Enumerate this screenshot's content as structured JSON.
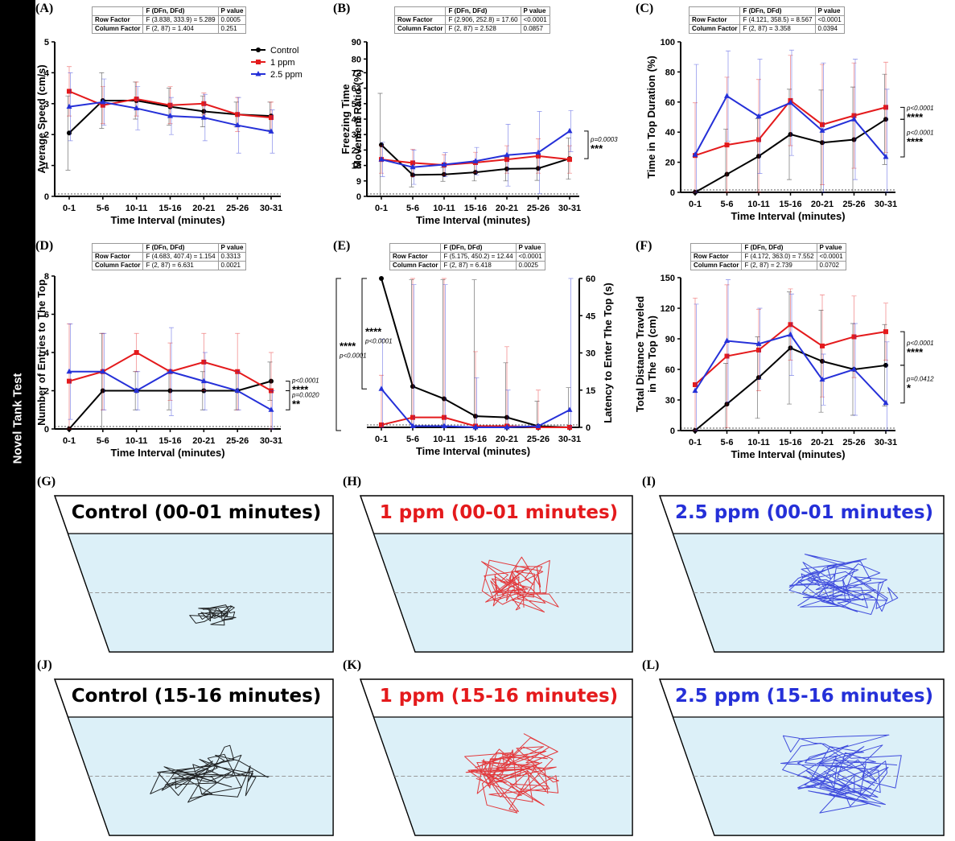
{
  "sidebar_label": "Novel Tank Test",
  "colors": {
    "control": "#000000",
    "ppm1": "#e41a1c",
    "ppm25": "#2530d8",
    "tank": "#dcf0f8"
  },
  "legend": [
    "Control",
    "1 ppm",
    "2.5 ppm"
  ],
  "chart_data": [
    {
      "type": "line",
      "label": "(A)",
      "categories": [
        "0-1",
        "5-6",
        "10-11",
        "15-16",
        "20-21",
        "25-26",
        "30-31"
      ],
      "xlabel": "Time Interval (minutes)",
      "ylabel": "Average Speed (cm/s)",
      "ylim": [
        0,
        5
      ],
      "yticks": [
        "0",
        "1",
        "2",
        "3",
        "4",
        "5"
      ],
      "series": [
        {
          "name": "Control",
          "values": [
            2.05,
            3.1,
            3.1,
            2.9,
            2.75,
            2.65,
            2.6
          ],
          "err": [
            1.2,
            0.9,
            0.6,
            0.6,
            0.5,
            0.4,
            0.45
          ]
        },
        {
          "name": "1 ppm",
          "values": [
            3.4,
            2.95,
            3.15,
            2.95,
            3.0,
            2.65,
            2.55
          ],
          "err": [
            0.8,
            0.6,
            0.55,
            0.6,
            0.35,
            0.55,
            0.5
          ]
        },
        {
          "name": "2.5 ppm",
          "values": [
            2.9,
            3.05,
            2.85,
            2.6,
            2.55,
            2.3,
            2.1
          ],
          "err": [
            1.1,
            0.75,
            0.7,
            0.6,
            0.75,
            0.9,
            0.7
          ]
        }
      ],
      "stat": {
        "head": [
          "",
          "F (DFn, DFd)",
          "P value"
        ],
        "row": [
          "Row Factor",
          "F (3.838, 333.9) = 5.289",
          "0.0005"
        ],
        "col": [
          "Column Factor",
          "F (2, 87) = 1.404",
          "0.251"
        ]
      }
    },
    {
      "type": "line",
      "label": "(B)",
      "categories": [
        "0-1",
        "5-6",
        "10-11",
        "15-16",
        "20-21",
        "25-26",
        "30-31"
      ],
      "xlabel": "Time Interval (minutes)",
      "ylabel": [
        "Freezing Time",
        "Movement Ratio (%)"
      ],
      "ylim": [
        0,
        90
      ],
      "ytick_vals": [
        0,
        9,
        18,
        27,
        36,
        45,
        54,
        63,
        72,
        80,
        90
      ],
      "yticks": [
        "0",
        "9",
        "18",
        "27",
        "36",
        "45",
        "54",
        "63",
        "72",
        "80",
        "90"
      ],
      "series": [
        {
          "name": "Control",
          "values": [
            30,
            12.5,
            12.8,
            14,
            16,
            16.3,
            22
          ],
          "err": [
            30,
            7,
            4,
            5,
            7,
            7,
            12
          ]
        },
        {
          "name": "1 ppm",
          "values": [
            21.5,
            19.5,
            18.3,
            19.7,
            21.5,
            23.5,
            21.5
          ],
          "err": [
            8,
            8,
            6,
            6,
            8,
            10,
            8
          ]
        },
        {
          "name": "2.5 ppm",
          "values": [
            21.5,
            17,
            18.5,
            20.5,
            24,
            25.5,
            38
          ],
          "err": [
            10,
            10,
            7,
            8,
            18,
            24,
            12
          ]
        }
      ],
      "stat": {
        "head": [
          "",
          "F (DFn, DFd)",
          "P value"
        ],
        "row": [
          "Row Factor",
          "F (2.906, 252.8) = 17.60",
          "<0.0001"
        ],
        "col": [
          "Column Factor",
          "F (2, 87) = 2.528",
          "0.0857"
        ]
      },
      "sig": [
        {
          "p": "p=0.0003",
          "stars": "***"
        }
      ]
    },
    {
      "type": "line",
      "label": "(C)",
      "categories": [
        "0-1",
        "5-6",
        "10-11",
        "15-16",
        "20-21",
        "25-26",
        "30-31"
      ],
      "xlabel": "Time Interval (minutes)",
      "ylabel": "Time in Top Duration (%)",
      "ylim": [
        0,
        100
      ],
      "yticks": [
        "0",
        "20",
        "40",
        "60",
        "80",
        "100"
      ],
      "series": [
        {
          "name": "Control",
          "values": [
            0,
            12,
            24,
            38.5,
            33,
            35,
            48.5
          ],
          "err": [
            0,
            30,
            25,
            30,
            35,
            35,
            30
          ]
        },
        {
          "name": "1 ppm",
          "values": [
            24.5,
            31.5,
            35,
            61,
            45,
            51,
            56.5
          ],
          "err": [
            35,
            45,
            40,
            30,
            40,
            35,
            30
          ]
        },
        {
          "name": "2.5 ppm",
          "values": [
            25,
            64,
            50.5,
            59.5,
            41,
            48.5,
            23.5
          ],
          "err": [
            60,
            30,
            38,
            35,
            45,
            40,
            45
          ]
        }
      ],
      "stat": {
        "head": [
          "",
          "F (DFn, DFd)",
          "P value"
        ],
        "row": [
          "Row Factor",
          "F (4.121, 358.5) = 8.567",
          "<0.0001"
        ],
        "col": [
          "Column Factor",
          "F (2, 87) = 3.358",
          "0.0394"
        ]
      },
      "sig": [
        {
          "p": "p<0.0001",
          "stars": "****"
        },
        {
          "p": "p<0.0001",
          "stars": "****"
        }
      ]
    },
    {
      "type": "line",
      "label": "(D)",
      "categories": [
        "0-1",
        "5-6",
        "10-11",
        "15-16",
        "20-21",
        "25-26",
        "30-31"
      ],
      "xlabel": "Time Interval (minutes)",
      "ylabel": "Number of Entries to The Top",
      "ylim": [
        0,
        8
      ],
      "yticks": [
        "0",
        "2",
        "4",
        "6",
        "8"
      ],
      "series": [
        {
          "name": "Control",
          "values": [
            0,
            2,
            2,
            2,
            2,
            2,
            2.5
          ],
          "err": [
            0,
            3,
            1,
            1,
            1,
            1,
            1
          ]
        },
        {
          "name": "1 ppm",
          "values": [
            2.5,
            3,
            4,
            3,
            3.5,
            3,
            2
          ],
          "err": [
            3,
            2,
            1,
            1.5,
            1.5,
            2,
            2
          ]
        },
        {
          "name": "2.5 ppm",
          "values": [
            3,
            3,
            2,
            3,
            2.5,
            2,
            1
          ],
          "err": [
            2.5,
            2,
            1,
            2.3,
            1.5,
            1,
            1
          ]
        }
      ],
      "stat": {
        "head": [
          "",
          "F (DFn, DFd)",
          "P value"
        ],
        "row": [
          "Row Factor",
          "F (4.683, 407.4) = 1.154",
          "0.3313"
        ],
        "col": [
          "Column Factor",
          "F (2, 87) = 6.631",
          "0.0021"
        ]
      },
      "sig": [
        {
          "p": "p<0.0001",
          "stars": "****"
        },
        {
          "p": "p=0.0020",
          "stars": "**"
        }
      ]
    },
    {
      "type": "line",
      "label": "(E)",
      "categories": [
        "0-1",
        "5-6",
        "10-11",
        "15-16",
        "20-21",
        "25-26",
        "30-31"
      ],
      "xlabel": "Time Interval (minutes)",
      "ylabel": "Latency to Enter The Top (s)",
      "ylim": [
        0,
        60
      ],
      "yticks": [
        "0",
        "15",
        "30",
        "45",
        "60"
      ],
      "series": [
        {
          "name": "Control",
          "values": [
            60,
            16.5,
            11.5,
            4.5,
            4,
            0.5,
            0
          ],
          "err": [
            0,
            43,
            48,
            55,
            22,
            10,
            16
          ]
        },
        {
          "name": "1 ppm",
          "values": [
            1,
            4,
            4,
            0.5,
            0.5,
            0,
            0
          ],
          "err": [
            20,
            57,
            57,
            30,
            32,
            15,
            0
          ]
        },
        {
          "name": "2.5 ppm",
          "values": [
            15.5,
            0.5,
            0.5,
            0,
            0,
            0.5,
            7
          ],
          "err": [
            20,
            57,
            57,
            20,
            15,
            0,
            58
          ]
        }
      ],
      "stat": {
        "head": [
          "",
          "F (DFn, DFd)",
          "P value"
        ],
        "row": [
          "Row Factor",
          "F (5.175, 450.2) = 12.44",
          "<0.0001"
        ],
        "col": [
          "Column Factor",
          "F (2, 87) = 6.418",
          "0.0025"
        ]
      },
      "sig": [
        {
          "p": "p<0.0001",
          "stars": "****"
        },
        {
          "p": "p<0.0001",
          "stars": "****"
        }
      ]
    },
    {
      "type": "line",
      "label": "(F)",
      "categories": [
        "0-1",
        "5-6",
        "10-11",
        "15-16",
        "20-21",
        "25-26",
        "30-31"
      ],
      "xlabel": "Time Interval (minutes)",
      "ylabel": [
        "Total Distance Traveled",
        "in The Top (cm)"
      ],
      "ylim": [
        0,
        150
      ],
      "yticks": [
        "0",
        "30",
        "60",
        "90",
        "120",
        "150"
      ],
      "series": [
        {
          "name": "Control",
          "values": [
            0,
            26,
            52,
            81,
            68,
            60,
            64
          ],
          "err": [
            0,
            40,
            40,
            55,
            50,
            45,
            40
          ]
        },
        {
          "name": "1 ppm",
          "values": [
            45,
            73,
            79,
            104,
            83,
            92,
            97
          ],
          "err": [
            85,
            70,
            40,
            35,
            50,
            40,
            28
          ]
        },
        {
          "name": "2.5 ppm",
          "values": [
            39,
            88,
            85,
            94,
            50,
            60,
            27
          ],
          "err": [
            85,
            60,
            35,
            40,
            25,
            45,
            60
          ]
        }
      ],
      "stat": {
        "head": [
          "",
          "F (DFn, DFd)",
          "P value"
        ],
        "row": [
          "Row Factor",
          "F (4.172, 363.0) = 7.552",
          "<0.0001"
        ],
        "col": [
          "Column Factor",
          "F (2, 87) = 2.739",
          "0.0702"
        ]
      },
      "sig": [
        {
          "p": "p<0.0001",
          "stars": "****"
        },
        {
          "p": "p=0.0412",
          "stars": "*"
        }
      ]
    }
  ],
  "tanks": [
    {
      "label": "(G)",
      "title": "Control (00-01 minutes)",
      "color": "#000000"
    },
    {
      "label": "(H)",
      "title": "1 ppm (00-01 minutes)",
      "color": "#e41a1c"
    },
    {
      "label": "(I)",
      "title": "2.5 ppm (00-01 minutes)",
      "color": "#2530d8"
    },
    {
      "label": "(J)",
      "title": "Control (15-16 minutes)",
      "color": "#000000"
    },
    {
      "label": "(K)",
      "title": "1 ppm (15-16 minutes)",
      "color": "#e41a1c"
    },
    {
      "label": "(L)",
      "title": "2.5 ppm (15-16 minutes)",
      "color": "#2530d8"
    }
  ]
}
